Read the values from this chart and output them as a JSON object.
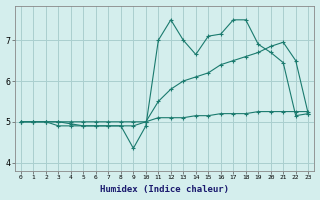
{
  "xlabel": "Humidex (Indice chaleur)",
  "x_values": [
    0,
    1,
    2,
    3,
    4,
    5,
    6,
    7,
    8,
    9,
    10,
    11,
    12,
    13,
    14,
    15,
    16,
    17,
    18,
    19,
    20,
    21,
    22,
    23
  ],
  "line1": [
    5.0,
    5.0,
    5.0,
    4.9,
    4.9,
    4.9,
    4.9,
    4.9,
    4.9,
    4.35,
    4.9,
    7.0,
    7.5,
    7.0,
    6.65,
    7.1,
    7.15,
    7.5,
    7.5,
    6.9,
    6.7,
    6.45,
    5.15,
    5.2
  ],
  "line2": [
    5.0,
    5.0,
    5.0,
    5.0,
    4.95,
    4.9,
    4.9,
    4.9,
    4.9,
    4.9,
    5.0,
    5.5,
    5.8,
    6.0,
    6.1,
    6.2,
    6.4,
    6.5,
    6.6,
    6.7,
    6.85,
    6.95,
    6.5,
    5.2
  ],
  "line3": [
    5.0,
    5.0,
    5.0,
    5.0,
    5.0,
    5.0,
    5.0,
    5.0,
    5.0,
    5.0,
    5.0,
    5.1,
    5.1,
    5.1,
    5.15,
    5.15,
    5.2,
    5.2,
    5.2,
    5.25,
    5.25,
    5.25,
    5.25,
    5.25
  ],
  "color": "#1a7a6e",
  "bg_color": "#d4eeed",
  "grid_color": "#aacfcf",
  "ylim": [
    3.8,
    7.85
  ],
  "yticks": [
    4,
    5,
    6,
    7
  ],
  "xlim": [
    -0.5,
    23.5
  ]
}
